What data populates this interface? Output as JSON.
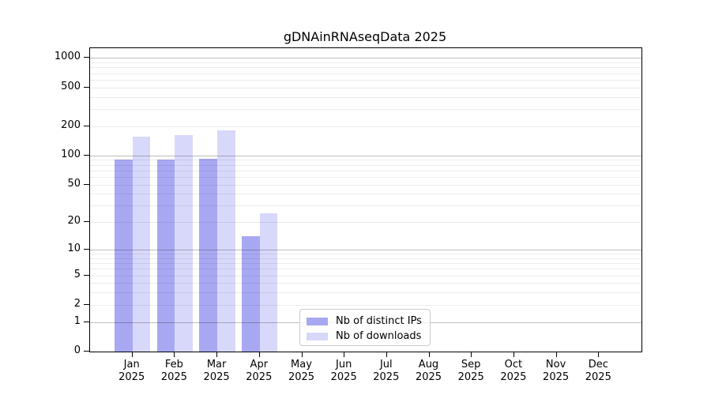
{
  "title": "gDNAinRNAseqData 2025",
  "colors": {
    "ips_bar": "#a8a8f2",
    "downloads_bar": "#d8d8fa",
    "grid_major": "rgba(0,0,0,0.25)",
    "grid_minor": "rgba(0,0,0,0.075)",
    "spine": "#000000"
  },
  "legend": {
    "items": [
      {
        "label": "Nb of distinct IPs",
        "color_key": "ips_bar"
      },
      {
        "label": "Nb of downloads",
        "color_key": "downloads_bar"
      }
    ]
  },
  "chart_data": {
    "type": "bar",
    "title": "gDNAinRNAseqData 2025",
    "categories": [
      "Jan 2025",
      "Feb 2025",
      "Mar 2025",
      "Apr 2025",
      "May 2025",
      "Jun 2025",
      "Jul 2025",
      "Aug 2025",
      "Sep 2025",
      "Oct 2025",
      "Nov 2025",
      "Dec 2025"
    ],
    "series": [
      {
        "name": "Nb of distinct IPs",
        "values": [
          90,
          90,
          93,
          14,
          0,
          0,
          0,
          0,
          0,
          0,
          0,
          0
        ]
      },
      {
        "name": "Nb of downloads",
        "values": [
          156,
          161,
          183,
          25,
          0,
          0,
          0,
          0,
          0,
          0,
          0,
          0
        ]
      }
    ],
    "xlabel": "",
    "ylabel": "",
    "yscale": "log10(1+y)",
    "ylim": [
      0,
      1260
    ],
    "y_ticks": [
      0,
      1,
      2,
      5,
      10,
      20,
      50,
      100,
      200,
      500,
      1000
    ],
    "grid": "horizontal, drawn over bars, major at powers of 10, minor at 2-9 multiples",
    "legend_position": "lower center-right inside plot"
  }
}
